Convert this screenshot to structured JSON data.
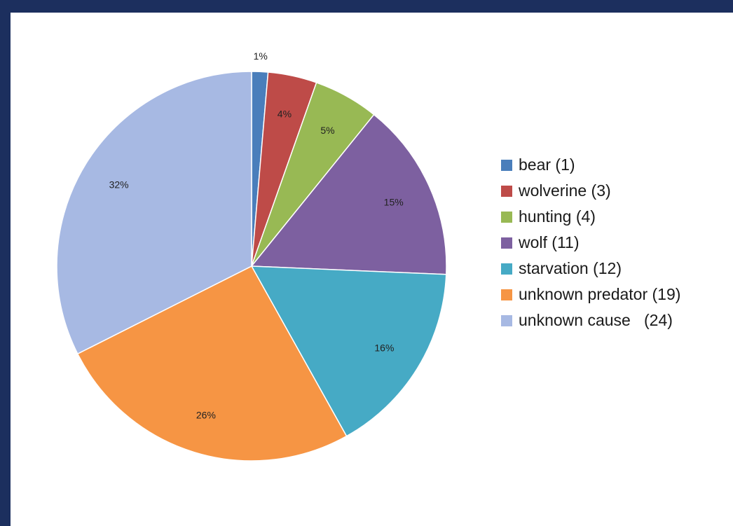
{
  "chart_data": {
    "type": "pie",
    "categories": [
      "bear (1)",
      "wolverine (3)",
      "hunting (4)",
      "wolf (11)",
      "starvation (12)",
      "unknown predator (19)",
      "unknown cause   (24)"
    ],
    "values": [
      1,
      3,
      4,
      11,
      12,
      19,
      24
    ],
    "data_labels": [
      "1%",
      "4%",
      "5%",
      "15%",
      "16%",
      "26%",
      "32%"
    ],
    "colors": [
      "#4a7ebb",
      "#be4b48",
      "#98b954",
      "#7d60a0",
      "#46aac5",
      "#f69544",
      "#a7b9e3"
    ],
    "start_angle_deg": 0,
    "direction": "clockwise",
    "legend_position": "right"
  }
}
